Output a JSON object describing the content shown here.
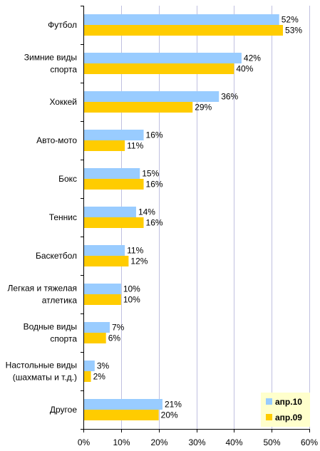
{
  "chart_data": {
    "type": "bar",
    "orientation": "horizontal",
    "categories": [
      [
        "Футбол"
      ],
      [
        "Зимние виды",
        "спорта"
      ],
      [
        "Хоккей"
      ],
      [
        "Авто-мото"
      ],
      [
        "Бокс"
      ],
      [
        "Теннис"
      ],
      [
        "Баскетбол"
      ],
      [
        "Легкая и тяжелая",
        "атлетика"
      ],
      [
        "Водные виды",
        "спорта"
      ],
      [
        "Настольные виды",
        "(шахматы и т.д.)"
      ],
      [
        "Другое"
      ]
    ],
    "series": [
      {
        "name": "апр.10",
        "color": "#99ccff",
        "values": [
          52,
          42,
          36,
          16,
          15,
          14,
          11,
          10,
          7,
          3,
          21
        ],
        "labels": [
          "52%",
          "42%",
          "36%",
          "16%",
          "15%",
          "14%",
          "11%",
          "10%",
          "7%",
          "3%",
          "21%"
        ]
      },
      {
        "name": "апр.09",
        "color": "#ffcc00",
        "values": [
          53,
          40,
          29,
          11,
          16,
          16,
          12,
          10,
          6,
          2,
          20
        ],
        "labels": [
          "53%",
          "40%",
          "29%",
          "11%",
          "16%",
          "16%",
          "12%",
          "10%",
          "6%",
          "2%",
          "20%"
        ]
      }
    ],
    "xlim": [
      0,
      60
    ],
    "xticks": [
      0,
      10,
      20,
      30,
      40,
      50,
      60
    ],
    "xtick_labels": [
      "0%",
      "10%",
      "20%",
      "30%",
      "40%",
      "50%",
      "60%"
    ],
    "grid": true,
    "legend_position": "bottom-right",
    "legend_background": "#ffffcc",
    "gridline_color": "#c0c0e0"
  }
}
